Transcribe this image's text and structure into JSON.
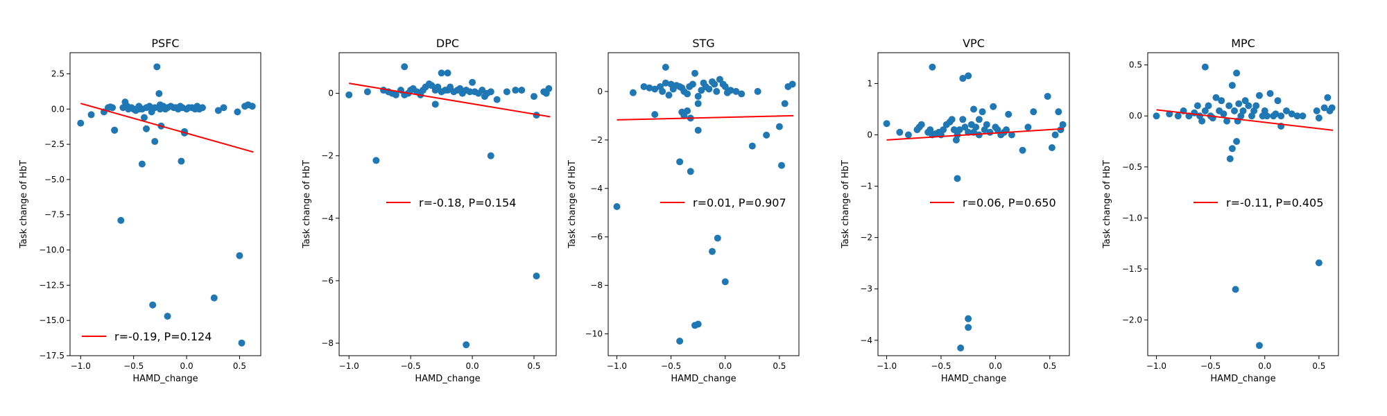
{
  "figure": {
    "background": "#ffffff"
  },
  "colors": {
    "scatter": "#1f77b4",
    "fit_line": "#ff0000",
    "axes": "#000000"
  },
  "chart_data": [
    {
      "type": "scatter",
      "title": "PSFC",
      "xlabel": "HAMD_change",
      "ylabel": "Task change of HbT",
      "xlim": [
        -1.1,
        0.7
      ],
      "ylim": [
        -17.5,
        4.0
      ],
      "xticks": [
        -1.0,
        -0.5,
        0.0,
        0.5
      ],
      "xtick_labels": [
        "−1.0",
        "−0.5",
        "0.0",
        "0.5"
      ],
      "yticks": [
        -17.5,
        -15.0,
        -12.5,
        -10.0,
        -7.5,
        -5.0,
        -2.5,
        0.0,
        2.5
      ],
      "ytick_labels": [
        "−17.5",
        "−15.0",
        "−12.5",
        "−10.0",
        "−7.5",
        "−5.0",
        "−2.5",
        "0.0",
        "2.5"
      ],
      "legend": {
        "label": "r=-0.19, P=0.124",
        "loc": "lower left"
      },
      "fit_line": {
        "x": [
          -1.0,
          0.63
        ],
        "y": [
          0.4,
          -3.05
        ]
      },
      "series": [
        {
          "x": [
            -1.0,
            -0.9,
            -0.78,
            -0.74,
            -0.72,
            -0.7,
            -0.68,
            -0.58,
            -0.56,
            -0.52,
            -0.5,
            -0.48,
            -0.45,
            -0.42,
            -0.4,
            -0.38,
            -0.35,
            -0.33,
            -0.3,
            -0.28,
            -0.26,
            -0.25,
            -0.24,
            -0.22,
            -0.2,
            -0.18,
            -0.15,
            -0.12,
            -0.1,
            -0.08,
            -0.06,
            -0.04,
            -0.02,
            0.0,
            0.02,
            0.05,
            0.08,
            0.1,
            0.12,
            0.15,
            0.3,
            0.35,
            0.48,
            0.55,
            0.58,
            0.62,
            -0.6,
            -0.55,
            -0.45,
            -0.38,
            -0.3,
            -0.25,
            -0.25,
            -0.62,
            -0.68,
            -0.42,
            -0.32,
            -0.18,
            -0.05,
            -0.02,
            0.26,
            0.5,
            0.52
          ],
          "y": [
            -1.0,
            -0.4,
            -0.2,
            0.1,
            0.15,
            0.1,
            -1.5,
            0.5,
            0.2,
            0.1,
            0.0,
            -0.1,
            0.2,
            0.0,
            -0.6,
            0.1,
            0.2,
            -0.2,
            0.1,
            3.0,
            1.1,
            0.3,
            -1.2,
            0.2,
            0.0,
            0.1,
            0.2,
            0.1,
            0.1,
            0.0,
            0.2,
            0.1,
            -1.7,
            0.0,
            0.1,
            0.1,
            0.0,
            0.2,
            0.0,
            0.1,
            -0.1,
            0.1,
            -0.2,
            0.2,
            0.3,
            0.2,
            0.1,
            0.0,
            0.0,
            -1.4,
            -2.3,
            0.0,
            0.1,
            -7.9,
            -1.5,
            -3.9,
            -13.9,
            -14.7,
            -3.7,
            -1.6,
            -13.4,
            -10.4,
            -16.6
          ]
        }
      ]
    },
    {
      "type": "scatter",
      "title": "DPC",
      "xlabel": "HAMD_change",
      "ylabel": "Task change of HbT",
      "xlim": [
        -1.08,
        0.68
      ],
      "ylim": [
        -8.4,
        1.3
      ],
      "xticks": [
        -1.0,
        -0.5,
        0.0,
        0.5
      ],
      "xtick_labels": [
        "−1.0",
        "−0.5",
        "0.0",
        "0.5"
      ],
      "yticks": [
        -8,
        -6,
        -4,
        -2,
        0
      ],
      "ytick_labels": [
        "−8",
        "−6",
        "−4",
        "−2",
        "0"
      ],
      "legend": {
        "label": "r=-0.18, P=0.154",
        "loc": "center right"
      },
      "fit_line": {
        "x": [
          -1.0,
          0.63
        ],
        "y": [
          0.32,
          -0.75
        ]
      },
      "series": [
        {
          "x": [
            -1.0,
            -0.85,
            -0.72,
            -0.68,
            -0.65,
            -0.62,
            -0.58,
            -0.55,
            -0.52,
            -0.5,
            -0.48,
            -0.45,
            -0.42,
            -0.4,
            -0.38,
            -0.35,
            -0.33,
            -0.3,
            -0.28,
            -0.25,
            -0.22,
            -0.2,
            -0.18,
            -0.15,
            -0.12,
            -0.1,
            -0.08,
            -0.05,
            -0.02,
            0.0,
            0.02,
            0.05,
            0.08,
            0.1,
            0.12,
            0.15,
            0.2,
            0.28,
            0.35,
            0.4,
            0.5,
            0.58,
            0.6,
            0.62,
            -0.55,
            -0.25,
            -0.2,
            -0.3,
            -0.78,
            0.15,
            -0.05,
            0.52,
            0.52
          ],
          "y": [
            -0.05,
            0.05,
            0.1,
            0.05,
            0.0,
            -0.05,
            0.1,
            0.85,
            0.0,
            0.1,
            0.15,
            0.05,
            -0.05,
            0.1,
            0.2,
            0.3,
            0.25,
            0.1,
            0.2,
            0.05,
            0.1,
            0.1,
            0.2,
            0.05,
            0.1,
            0.15,
            0.0,
            0.1,
            0.05,
            0.35,
            0.05,
            0.0,
            0.1,
            -0.1,
            0.0,
            0.05,
            -0.2,
            0.05,
            0.1,
            0.1,
            -0.1,
            0.05,
            0.0,
            0.15,
            -0.05,
            0.65,
            0.65,
            -0.35,
            -2.15,
            -2.0,
            -8.05,
            -5.85,
            -0.7
          ]
        }
      ]
    },
    {
      "type": "scatter",
      "title": "STG",
      "xlabel": "HAMD_change",
      "ylabel": "Task change of HbT",
      "xlim": [
        -1.08,
        0.68
      ],
      "ylim": [
        -10.9,
        1.6
      ],
      "xticks": [
        -1.0,
        -0.5,
        0.0,
        0.5
      ],
      "xtick_labels": [
        "−1.0",
        "−0.5",
        "0.0",
        "0.5"
      ],
      "yticks": [
        -10,
        -8,
        -6,
        -4,
        -2,
        0
      ],
      "ytick_labels": [
        "−10",
        "−8",
        "−6",
        "−4",
        "−2",
        "0"
      ],
      "legend": {
        "label": "r=0.01, P=0.907",
        "loc": "center right"
      },
      "fit_line": {
        "x": [
          -1.0,
          0.63
        ],
        "y": [
          -1.17,
          -1.0
        ]
      },
      "series": [
        {
          "x": [
            -0.85,
            -0.75,
            -0.7,
            -0.65,
            -0.6,
            -0.58,
            -0.55,
            -0.52,
            -0.5,
            -0.48,
            -0.45,
            -0.42,
            -0.4,
            -0.38,
            -0.35,
            -0.33,
            -0.3,
            -0.28,
            -0.25,
            -0.22,
            -0.2,
            -0.18,
            -0.15,
            -0.12,
            -0.1,
            -0.08,
            -0.05,
            -0.02,
            0.0,
            0.02,
            0.05,
            0.1,
            0.15,
            0.3,
            0.58,
            0.62,
            -0.55,
            -0.25,
            -0.38,
            -0.35,
            -0.32,
            -0.4,
            -0.25,
            -0.65,
            -0.42,
            -0.32,
            0.25,
            0.38,
            0.5,
            0.55,
            0.52,
            -0.12,
            -0.07,
            0.0,
            -0.28,
            -0.25,
            -0.42,
            -1.0
          ],
          "y": [
            -0.05,
            0.2,
            0.15,
            0.1,
            0.2,
            0.0,
            0.35,
            -0.15,
            0.3,
            0.1,
            0.25,
            0.2,
            0.15,
            0.0,
            -0.1,
            0.2,
            0.3,
            0.75,
            -0.2,
            0.05,
            0.35,
            0.2,
            0.1,
            0.4,
            0.3,
            0.0,
            0.5,
            0.3,
            0.2,
            -0.05,
            0.05,
            0.0,
            -0.1,
            0.0,
            0.2,
            0.3,
            1.0,
            -0.5,
            -1.0,
            -0.8,
            -1.1,
            -0.85,
            -1.6,
            -0.95,
            -2.9,
            -3.3,
            -2.25,
            -1.8,
            -1.45,
            -0.5,
            -3.05,
            -6.6,
            -6.05,
            -7.85,
            -9.65,
            -9.6,
            -10.3,
            -4.75
          ]
        }
      ]
    },
    {
      "type": "scatter",
      "title": "VPC",
      "xlabel": "HAMD_change",
      "ylabel": "Task change of HbT",
      "xlim": [
        -1.08,
        0.68
      ],
      "ylim": [
        -4.3,
        1.6
      ],
      "xticks": [
        -1.0,
        -0.5,
        0.0,
        0.5
      ],
      "xtick_labels": [
        "−1.0",
        "−0.5",
        "0.0",
        "0.5"
      ],
      "yticks": [
        -4,
        -3,
        -2,
        -1,
        0,
        1
      ],
      "ytick_labels": [
        "−4",
        "−3",
        "−2",
        "−1",
        "0",
        "1"
      ],
      "legend": {
        "label": "r=0.06, P=0.650",
        "loc": "center right"
      },
      "fit_line": {
        "x": [
          -1.0,
          0.63
        ],
        "y": [
          -0.1,
          0.12
        ]
      },
      "series": [
        {
          "x": [
            -1.0,
            -0.88,
            -0.8,
            -0.72,
            -0.7,
            -0.68,
            -0.62,
            -0.6,
            -0.58,
            -0.55,
            -0.52,
            -0.5,
            -0.48,
            -0.45,
            -0.42,
            -0.4,
            -0.38,
            -0.36,
            -0.35,
            -0.33,
            -0.3,
            -0.28,
            -0.25,
            -0.22,
            -0.2,
            -0.18,
            -0.15,
            -0.12,
            -0.1,
            -0.08,
            -0.05,
            -0.02,
            0.0,
            0.02,
            0.05,
            0.08,
            0.1,
            0.12,
            0.15,
            0.25,
            0.3,
            0.35,
            0.48,
            0.52,
            0.55,
            0.58,
            0.6,
            0.62,
            -0.58,
            -0.3,
            -0.25,
            -0.2,
            -0.15,
            -0.35,
            -0.25,
            -0.25,
            -0.32
          ],
          "y": [
            0.22,
            0.05,
            0.0,
            0.1,
            0.15,
            0.2,
            0.05,
            0.1,
            0.0,
            0.02,
            0.05,
            0.0,
            0.1,
            0.2,
            0.25,
            0.3,
            0.1,
            -0.1,
            0.0,
            0.1,
            0.3,
            0.15,
            0.05,
            0.2,
            0.5,
            0.15,
            0.3,
            0.45,
            0.1,
            0.2,
            0.05,
            0.55,
            0.15,
            0.1,
            0.0,
            0.05,
            0.1,
            0.4,
            0.0,
            -0.3,
            0.15,
            0.45,
            0.75,
            -0.25,
            0.0,
            0.45,
            0.1,
            0.2,
            1.32,
            1.1,
            1.15,
            0.05,
            0.0,
            -0.85,
            -3.58,
            -3.75,
            -4.15
          ]
        }
      ]
    },
    {
      "type": "scatter",
      "title": "MPC",
      "xlabel": "HAMD_change",
      "ylabel": "Task change of HbT",
      "xlim": [
        -1.08,
        0.68
      ],
      "ylim": [
        -2.35,
        0.62
      ],
      "xticks": [
        -1.0,
        -0.5,
        0.0,
        0.5
      ],
      "xtick_labels": [
        "−1.0",
        "−0.5",
        "0.0",
        "0.5"
      ],
      "yticks": [
        -2.0,
        -1.5,
        -1.0,
        -0.5,
        0.0,
        0.5
      ],
      "ytick_labels": [
        "−2.0",
        "−1.5",
        "−1.0",
        "−0.5",
        "0.0",
        "0.5"
      ],
      "legend": {
        "label": "r=-0.11, P=0.405",
        "loc": "center right"
      },
      "fit_line": {
        "x": [
          -1.0,
          0.63
        ],
        "y": [
          0.06,
          -0.14
        ]
      },
      "series": [
        {
          "x": [
            -1.0,
            -0.88,
            -0.8,
            -0.75,
            -0.7,
            -0.65,
            -0.62,
            -0.6,
            -0.58,
            -0.55,
            -0.52,
            -0.5,
            -0.48,
            -0.45,
            -0.42,
            -0.4,
            -0.38,
            -0.35,
            -0.33,
            -0.3,
            -0.28,
            -0.26,
            -0.24,
            -0.22,
            -0.2,
            -0.18,
            -0.15,
            -0.12,
            -0.1,
            -0.08,
            -0.05,
            -0.02,
            0.0,
            0.02,
            0.05,
            0.08,
            0.1,
            0.12,
            0.15,
            0.2,
            0.25,
            0.3,
            0.35,
            0.48,
            0.5,
            0.55,
            0.58,
            0.6,
            0.62,
            -0.55,
            -0.26,
            -0.3,
            -0.32,
            -0.25,
            0.15,
            0.5,
            -0.27,
            -0.05
          ],
          "y": [
            0.0,
            0.02,
            0.0,
            0.05,
            0.0,
            0.03,
            0.1,
            0.0,
            -0.05,
            0.05,
            0.1,
            0.0,
            -0.02,
            0.18,
            0.05,
            0.15,
            0.02,
            -0.05,
            0.1,
            0.3,
            0.05,
            0.42,
            0.12,
            0.0,
            0.05,
            0.15,
            0.1,
            0.0,
            0.05,
            0.1,
            0.2,
            0.0,
            0.05,
            0.0,
            0.22,
            0.0,
            0.02,
            0.15,
            0.0,
            0.05,
            0.02,
            0.0,
            0.0,
            0.05,
            -0.02,
            0.08,
            0.18,
            0.05,
            0.08,
            0.48,
            -0.25,
            -0.32,
            -0.42,
            -0.05,
            -0.1,
            -1.44,
            -1.7,
            -2.25
          ]
        }
      ]
    }
  ]
}
